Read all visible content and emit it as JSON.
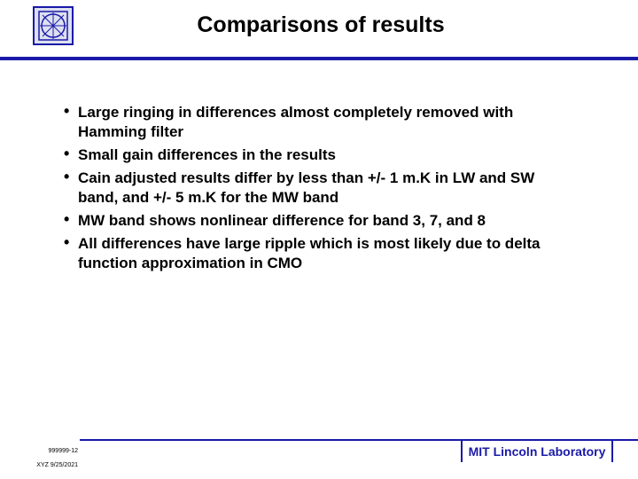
{
  "header": {
    "title": "Comparisons of results"
  },
  "bullets": [
    "Large ringing in differences almost completely removed with Hamming filter",
    "Small gain differences in the results",
    "Cain adjusted results differ by less than +/- 1 m.K in LW and SW band, and +/- 5 m.K for the MW band",
    "MW band shows nonlinear difference for band 3, 7, and 8",
    "All differences have large ripple which is most likely due to delta function approximation in CMO"
  ],
  "footer": {
    "code": "999999-12",
    "stamp": "XYZ 9/25/2021",
    "organization": "MIT Lincoln Laboratory"
  }
}
